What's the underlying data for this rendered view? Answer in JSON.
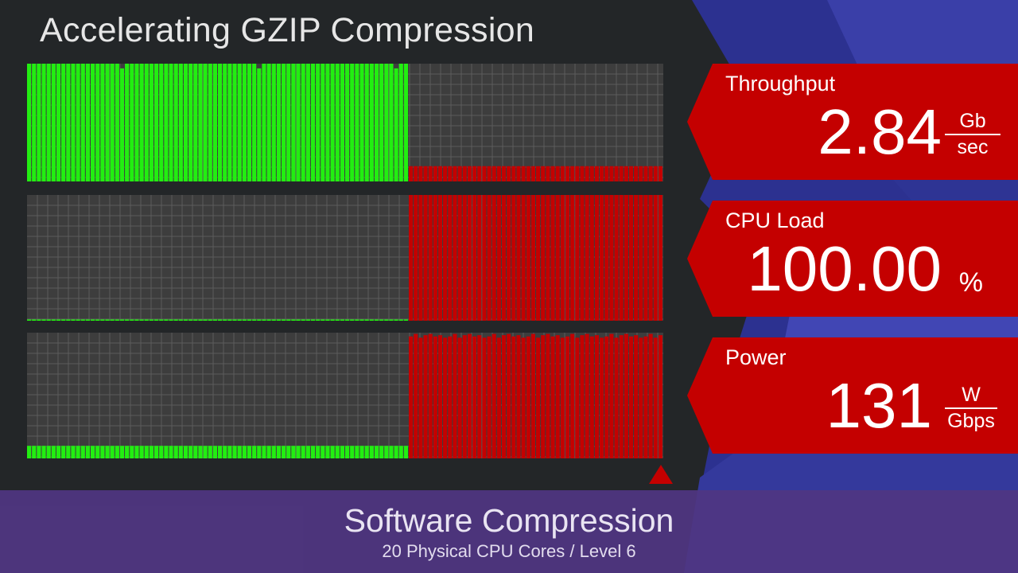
{
  "title": "Accelerating GZIP Compression",
  "metrics": [
    {
      "label": "Throughput",
      "value": "2.84",
      "unit_num": "Gb",
      "unit_den": "sec"
    },
    {
      "label": "CPU Load",
      "value": "100.00",
      "unit": "%"
    },
    {
      "label": "Power",
      "value": "131",
      "unit_num": "W",
      "unit_den": "Gbps"
    }
  ],
  "footer": {
    "title": "Software Compression",
    "subtitle": "20 Physical CPU Cores / Level 6"
  },
  "colors": {
    "background": "#232628",
    "panel": "#3d3d3d",
    "grid": "#5c5c5c",
    "accelerated": "#22ee11",
    "software": "#c40000",
    "footer": "#503682",
    "decoration_blue": "#3a3fa8"
  },
  "chart_data": [
    {
      "type": "bar",
      "name": "throughput",
      "ylim": [
        0,
        100
      ],
      "grid": true,
      "series": [
        {
          "color": "#22ee11",
          "count": 78,
          "values": [
            100
          ],
          "dips": [
            19,
            47,
            75
          ],
          "dip_value": 96
        },
        {
          "color": "#c40000",
          "count": 52,
          "values": [
            13
          ]
        }
      ]
    },
    {
      "type": "bar",
      "name": "cpu-load",
      "ylim": [
        0,
        100
      ],
      "grid": true,
      "series": [
        {
          "color": "#22ee11",
          "count": 78,
          "values": [
            1
          ]
        },
        {
          "color": "#c40000",
          "count": 52,
          "values": [
            100
          ]
        }
      ]
    },
    {
      "type": "bar",
      "name": "power",
      "ylim": [
        0,
        100
      ],
      "grid": true,
      "series": [
        {
          "color": "#22ee11",
          "count": 78,
          "values": [
            10
          ]
        },
        {
          "color": "#c40000",
          "count": 52,
          "values": [
            97,
            99,
            96,
            98,
            99,
            97,
            98,
            96
          ]
        }
      ]
    }
  ]
}
